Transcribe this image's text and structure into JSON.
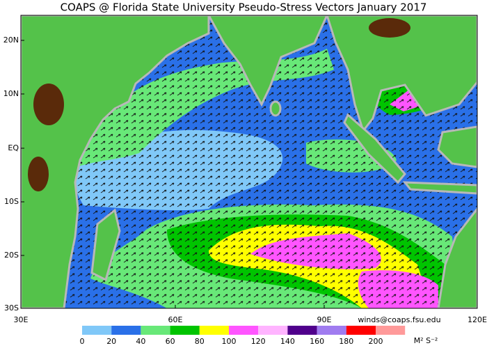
{
  "title": "COAPS @ Florida State University Pseudo-Stress Vectors January 2017",
  "map": {
    "lat_labels": [
      "20N",
      "10N",
      "EQ",
      "10S",
      "20S",
      "30S"
    ],
    "lon_labels": [
      "30E",
      "60E",
      "90E",
      "120E"
    ]
  },
  "credit": "winds@coaps.fsu.edu",
  "colorbar": {
    "colors": [
      "#80c8f8",
      "#2a70e8",
      "#68e878",
      "#00c400",
      "#ffff00",
      "#ff55ff",
      "#ffb4ff",
      "#50008c",
      "#a07cf0",
      "#ff0000",
      "#ff9a9a"
    ],
    "ticks": [
      0,
      20,
      40,
      60,
      80,
      100,
      120,
      140,
      160,
      180,
      200
    ],
    "unit": "M² S⁻²"
  }
}
